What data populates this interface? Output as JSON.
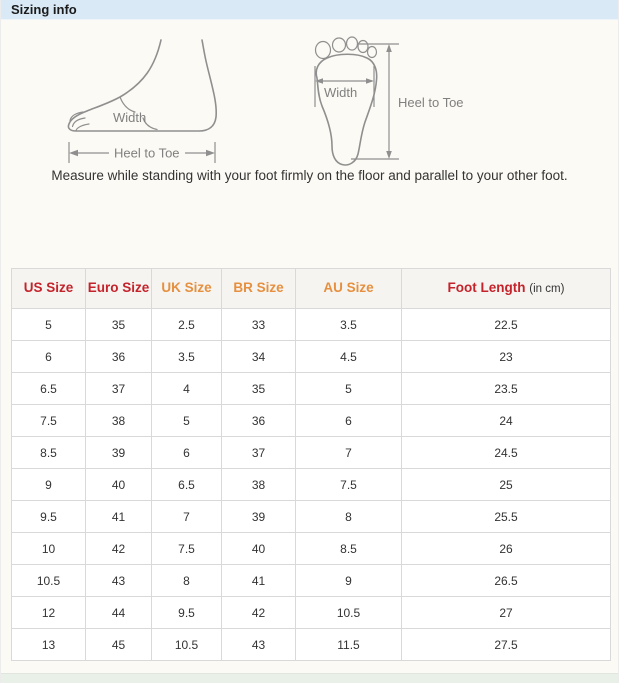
{
  "title_bar": {
    "title": "Sizing info"
  },
  "diagram": {
    "side_view": {
      "width_label": "Width",
      "heel_to_toe_label": "Heel to Toe"
    },
    "top_view": {
      "width_label": "Width",
      "heel_to_toe_label": "Heel to Toe"
    },
    "caption": "Measure while standing with your foot firmly on the floor and parallel to your other foot."
  },
  "colors": {
    "titlebar_bg": "#d9e9f6",
    "header_red": "#c5232b",
    "header_orange": "#e6903f",
    "table_border": "#d9d9d9",
    "diagram_stroke": "#8f8f8f",
    "bottom_strip": "#e8f0e7"
  },
  "table": {
    "columns": [
      {
        "label": "US Size"
      },
      {
        "label": "Euro Size"
      },
      {
        "label": "UK Size"
      },
      {
        "label": "BR Size"
      },
      {
        "label": "AU Size"
      },
      {
        "label": "Foot Length",
        "suffix": "(in cm)"
      }
    ],
    "rows": [
      [
        "5",
        "35",
        "2.5",
        "33",
        "3.5",
        "22.5"
      ],
      [
        "6",
        "36",
        "3.5",
        "34",
        "4.5",
        "23"
      ],
      [
        "6.5",
        "37",
        "4",
        "35",
        "5",
        "23.5"
      ],
      [
        "7.5",
        "38",
        "5",
        "36",
        "6",
        "24"
      ],
      [
        "8.5",
        "39",
        "6",
        "37",
        "7",
        "24.5"
      ],
      [
        "9",
        "40",
        "6.5",
        "38",
        "7.5",
        "25"
      ],
      [
        "9.5",
        "41",
        "7",
        "39",
        "8",
        "25.5"
      ],
      [
        "10",
        "42",
        "7.5",
        "40",
        "8.5",
        "26"
      ],
      [
        "10.5",
        "43",
        "8",
        "41",
        "9",
        "26.5"
      ],
      [
        "12",
        "44",
        "9.5",
        "42",
        "10.5",
        "27"
      ],
      [
        "13",
        "45",
        "10.5",
        "43",
        "11.5",
        "27.5"
      ]
    ]
  }
}
